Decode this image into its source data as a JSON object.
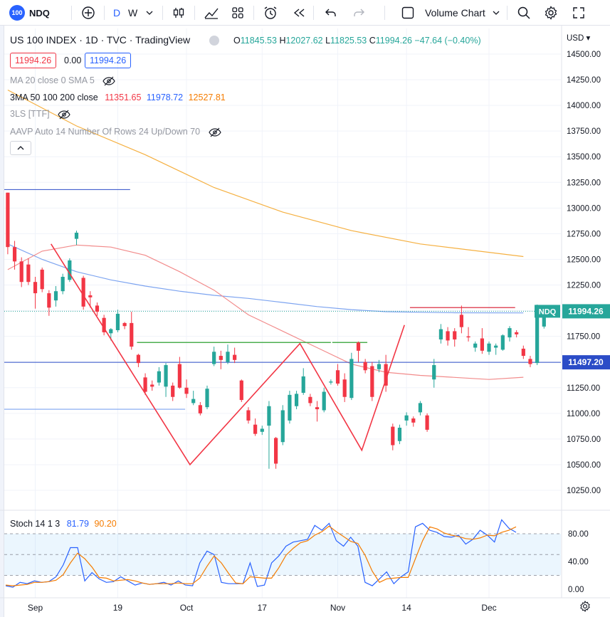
{
  "toolbar": {
    "symbol_badge": "100",
    "symbol": "NDQ",
    "intervals": [
      "D",
      "W"
    ],
    "chart_type_label": "Volume Chart"
  },
  "legend": {
    "title": "US 100 INDEX · 1D · TVC · TradingView",
    "ohlc": {
      "o_label": "O",
      "o": "11845.53",
      "h_label": "H",
      "h": "12027.62",
      "l_label": "L",
      "l": "11825.53",
      "c_label": "C",
      "c": "11994.26",
      "change": "−47.64 (−0.40%)"
    },
    "bid": "11994.26",
    "spread": "0.00",
    "ask": "11994.26",
    "indicators": [
      {
        "label": "MA 20 close 0 SMA 5",
        "values": []
      },
      {
        "label": "3MA 50 100 200 close",
        "values": [
          "11351.65",
          "11978.72",
          "12527.81"
        ]
      },
      {
        "label": "3LS [TTF]",
        "values": []
      },
      {
        "label": "AAVP Auto 14 Number Of Rows 24 Up/Down 70",
        "values": []
      }
    ],
    "stoch_label": "Stoch 14 1 3",
    "stoch_values": [
      "81.79",
      "90.20"
    ]
  },
  "price_axis": {
    "currency": "USD",
    "last_label": "NDQ",
    "last_value": "11994.26",
    "level_value": "11497.20"
  },
  "colors": {
    "up": "#26a69a",
    "down": "#f23645",
    "ma50": "#f28b8b",
    "ma100": "#7da4f0",
    "ma200": "#f5b041",
    "stoch_k": "#2962ff",
    "stoch_d": "#f57c00",
    "level": "#2b4cc7",
    "green_line": "#4caf50",
    "zigzag": "#f23645"
  },
  "chart_data": [
    {
      "type": "candlestick",
      "title": "US 100 INDEX · 1D · TVC · TradingView",
      "ylim": [
        10100,
        14650
      ],
      "yticks": [
        14500,
        14250,
        14000,
        13750,
        13500,
        13250,
        13000,
        12750,
        12500,
        12250,
        12000,
        11750,
        11500,
        11250,
        11000,
        10750,
        10500,
        10250
      ],
      "x_tick_labels": [
        {
          "label": "Sep",
          "index": 4
        },
        {
          "label": "19",
          "index": 16
        },
        {
          "label": "Oct",
          "index": 26
        },
        {
          "label": "17",
          "index": 37
        },
        {
          "label": "Nov",
          "index": 48
        },
        {
          "label": "14",
          "index": 58
        },
        {
          "label": "Dec",
          "index": 70
        }
      ],
      "x_range": [
        -0.3,
        77
      ],
      "candles": [
        {
          "o": 13150,
          "h": 13150,
          "l": 12550,
          "c": 12620
        },
        {
          "o": 12620,
          "h": 12680,
          "l": 12400,
          "c": 12480
        },
        {
          "o": 12480,
          "h": 12520,
          "l": 12230,
          "c": 12280
        },
        {
          "o": 12450,
          "h": 12510,
          "l": 12250,
          "c": 12280
        },
        {
          "o": 12280,
          "h": 12330,
          "l": 12020,
          "c": 12170
        },
        {
          "o": 12400,
          "h": 12420,
          "l": 12180,
          "c": 12210
        },
        {
          "o": 12170,
          "h": 12200,
          "l": 11950,
          "c": 12030
        },
        {
          "o": 12100,
          "h": 12240,
          "l": 12040,
          "c": 12190
        },
        {
          "o": 12190,
          "h": 12360,
          "l": 12160,
          "c": 12330
        },
        {
          "o": 12300,
          "h": 12510,
          "l": 12280,
          "c": 12490
        },
        {
          "o": 12700,
          "h": 12780,
          "l": 12640,
          "c": 12760
        },
        {
          "o": 12320,
          "h": 12340,
          "l": 12010,
          "c": 12040
        },
        {
          "o": 12150,
          "h": 12190,
          "l": 12030,
          "c": 12130
        },
        {
          "o": 12050,
          "h": 12080,
          "l": 11950,
          "c": 11990
        },
        {
          "o": 11930,
          "h": 11960,
          "l": 11760,
          "c": 11790
        },
        {
          "o": 11780,
          "h": 11830,
          "l": 11710,
          "c": 11820
        },
        {
          "o": 11810,
          "h": 12010,
          "l": 11790,
          "c": 11970
        },
        {
          "o": 11880,
          "h": 11890,
          "l": 11820,
          "c": 11850
        },
        {
          "o": 11880,
          "h": 11990,
          "l": 11620,
          "c": 11650
        },
        {
          "o": 11570,
          "h": 11580,
          "l": 11450,
          "c": 11490
        },
        {
          "o": 11350,
          "h": 11390,
          "l": 11180,
          "c": 11210
        },
        {
          "o": 11280,
          "h": 11320,
          "l": 11220,
          "c": 11260
        },
        {
          "o": 11300,
          "h": 11450,
          "l": 11270,
          "c": 11410
        },
        {
          "o": 11260,
          "h": 11490,
          "l": 11160,
          "c": 11470
        },
        {
          "o": 11270,
          "h": 11300,
          "l": 11120,
          "c": 11160
        },
        {
          "o": 11480,
          "h": 11550,
          "l": 11240,
          "c": 11250
        },
        {
          "o": 11250,
          "h": 11330,
          "l": 11150,
          "c": 11190
        },
        {
          "o": 11100,
          "h": 11220,
          "l": 11080,
          "c": 11140
        },
        {
          "o": 11080,
          "h": 11110,
          "l": 10980,
          "c": 11000
        },
        {
          "o": 11060,
          "h": 11270,
          "l": 11040,
          "c": 11240
        },
        {
          "o": 11480,
          "h": 11650,
          "l": 11460,
          "c": 11600
        },
        {
          "o": 11560,
          "h": 11610,
          "l": 11430,
          "c": 11520
        },
        {
          "o": 11500,
          "h": 11670,
          "l": 11480,
          "c": 11600
        },
        {
          "o": 11570,
          "h": 11640,
          "l": 11490,
          "c": 11520
        },
        {
          "o": 11320,
          "h": 11330,
          "l": 11110,
          "c": 11130
        },
        {
          "o": 11030,
          "h": 11060,
          "l": 10900,
          "c": 10930
        },
        {
          "o": 10890,
          "h": 10950,
          "l": 10780,
          "c": 10800
        },
        {
          "o": 10820,
          "h": 10880,
          "l": 10790,
          "c": 10850
        },
        {
          "o": 10880,
          "h": 11120,
          "l": 10460,
          "c": 11070
        },
        {
          "o": 10760,
          "h": 10770,
          "l": 10460,
          "c": 10510
        },
        {
          "o": 10720,
          "h": 11080,
          "l": 10690,
          "c": 11030
        },
        {
          "o": 10930,
          "h": 11220,
          "l": 10900,
          "c": 11180
        },
        {
          "o": 11070,
          "h": 11220,
          "l": 11040,
          "c": 11190
        },
        {
          "o": 11200,
          "h": 11440,
          "l": 11180,
          "c": 11360
        },
        {
          "o": 11160,
          "h": 11190,
          "l": 11070,
          "c": 11100
        },
        {
          "o": 11060,
          "h": 11120,
          "l": 10920,
          "c": 11040
        },
        {
          "o": 11030,
          "h": 11250,
          "l": 11010,
          "c": 11210
        },
        {
          "o": 11300,
          "h": 11330,
          "l": 11280,
          "c": 11310
        },
        {
          "o": 11420,
          "h": 11480,
          "l": 11270,
          "c": 11290
        },
        {
          "o": 11330,
          "h": 11390,
          "l": 11110,
          "c": 11160
        },
        {
          "o": 11150,
          "h": 11590,
          "l": 11130,
          "c": 11530
        },
        {
          "o": 11690,
          "h": 11700,
          "l": 11500,
          "c": 11610
        },
        {
          "o": 11500,
          "h": 11530,
          "l": 11390,
          "c": 11420
        },
        {
          "o": 11460,
          "h": 11500,
          "l": 11120,
          "c": 11160
        },
        {
          "o": 11430,
          "h": 11520,
          "l": 11400,
          "c": 11480
        },
        {
          "o": 11480,
          "h": 11570,
          "l": 11210,
          "c": 11270
        },
        {
          "o": 10870,
          "h": 10900,
          "l": 10640,
          "c": 10690
        },
        {
          "o": 10730,
          "h": 10890,
          "l": 10700,
          "c": 10860
        },
        {
          "o": 10930,
          "h": 11010,
          "l": 10880,
          "c": 10980
        },
        {
          "o": 10950,
          "h": 10970,
          "l": 10870,
          "c": 10910
        },
        {
          "o": 11010,
          "h": 11120,
          "l": 10980,
          "c": 11100
        },
        {
          "o": 10980,
          "h": 11000,
          "l": 10820,
          "c": 10840
        },
        {
          "o": 11330,
          "h": 11530,
          "l": 11250,
          "c": 11470
        },
        {
          "o": 11720,
          "h": 11870,
          "l": 11680,
          "c": 11820
        },
        {
          "o": 11800,
          "h": 11840,
          "l": 11660,
          "c": 11710
        },
        {
          "o": 11800,
          "h": 11830,
          "l": 11650,
          "c": 11720
        },
        {
          "o": 11960,
          "h": 12050,
          "l": 11780,
          "c": 11840
        },
        {
          "o": 11750,
          "h": 11840,
          "l": 11700,
          "c": 11740
        },
        {
          "o": 11640,
          "h": 11700,
          "l": 11600,
          "c": 11680
        },
        {
          "o": 11730,
          "h": 11830,
          "l": 11580,
          "c": 11610
        },
        {
          "o": 11600,
          "h": 11700,
          "l": 11570,
          "c": 11680
        },
        {
          "o": 11640,
          "h": 11680,
          "l": 11570,
          "c": 11660
        },
        {
          "o": 11620,
          "h": 11770,
          "l": 11610,
          "c": 11760
        },
        {
          "o": 11740,
          "h": 11850,
          "l": 11700,
          "c": 11830
        },
        {
          "o": 11790,
          "h": 11810,
          "l": 11740,
          "c": 11770
        },
        {
          "o": 11630,
          "h": 11660,
          "l": 11530,
          "c": 11560
        },
        {
          "o": 11530,
          "h": 11560,
          "l": 11450,
          "c": 11480
        },
        {
          "o": 11490,
          "h": 12060,
          "l": 11470,
          "c": 12030
        },
        {
          "o": 11845.53,
          "h": 12027.62,
          "l": 11825.53,
          "c": 11994.26
        }
      ],
      "horizontal_levels": [
        11994.26,
        11497.2,
        13180,
        11040
      ],
      "green_level": 11690,
      "ma200": [
        [
          0,
          14150
        ],
        [
          10,
          13800
        ],
        [
          20,
          13520
        ],
        [
          30,
          13200
        ],
        [
          40,
          12960
        ],
        [
          50,
          12780
        ],
        [
          60,
          12650
        ],
        [
          75,
          12527.81
        ]
      ],
      "ma100": [
        [
          0,
          12650
        ],
        [
          5,
          12500
        ],
        [
          10,
          12380
        ],
        [
          15,
          12300
        ],
        [
          20,
          12240
        ],
        [
          25,
          12190
        ],
        [
          30,
          12150
        ],
        [
          35,
          12120
        ],
        [
          40,
          12080
        ],
        [
          45,
          12040
        ],
        [
          50,
          12010
        ],
        [
          55,
          11990
        ],
        [
          60,
          11985
        ],
        [
          65,
          11980
        ],
        [
          75,
          11978.72
        ]
      ],
      "ma50": [
        [
          0,
          12400
        ],
        [
          5,
          12580
        ],
        [
          10,
          12640
        ],
        [
          15,
          12620
        ],
        [
          20,
          12540
        ],
        [
          25,
          12380
        ],
        [
          30,
          12200
        ],
        [
          35,
          11960
        ],
        [
          40,
          11800
        ],
        [
          45,
          11640
        ],
        [
          50,
          11480
        ],
        [
          55,
          11400
        ],
        [
          60,
          11370
        ],
        [
          65,
          11350
        ],
        [
          70,
          11330
        ],
        [
          75,
          11351.65
        ]
      ],
      "zigzag": [
        [
          6.3,
          12650
        ],
        [
          26.5,
          10500
        ],
        [
          42.5,
          11680
        ],
        [
          51.5,
          10640
        ],
        [
          57.7,
          11860
        ]
      ]
    },
    {
      "type": "line",
      "title": "Stoch 14 1 3",
      "ylim": [
        -5,
        100
      ],
      "yticks": [
        80,
        40,
        0
      ],
      "band": [
        20,
        80
      ],
      "series": [
        {
          "name": "%K",
          "values": [
            5,
            3,
            10,
            8,
            12,
            10,
            11,
            18,
            35,
            60,
            60,
            12,
            24,
            15,
            10,
            11,
            18,
            12,
            6,
            9,
            7,
            8,
            10,
            6,
            12,
            6,
            5,
            38,
            55,
            50,
            10,
            8,
            8,
            8,
            38,
            4,
            6,
            38,
            48,
            62,
            68,
            70,
            72,
            92,
            85,
            95,
            70,
            62,
            75,
            62,
            10,
            5,
            15,
            25,
            8,
            18,
            25,
            90,
            95,
            85,
            82,
            76,
            75,
            78,
            65,
            72,
            85,
            78,
            68,
            100,
            88,
            82
          ]
        },
        {
          "name": "%D",
          "values": [
            6,
            5,
            6,
            7,
            10,
            10,
            11,
            13,
            21,
            38,
            52,
            44,
            32,
            17,
            16,
            12,
            13,
            14,
            12,
            9,
            7,
            8,
            8,
            8,
            9,
            8,
            8,
            16,
            33,
            48,
            38,
            23,
            9,
            8,
            18,
            17,
            16,
            16,
            31,
            49,
            59,
            67,
            70,
            78,
            83,
            91,
            83,
            76,
            69,
            66,
            49,
            26,
            10,
            15,
            16,
            17,
            17,
            44,
            70,
            90,
            87,
            81,
            78,
            76,
            73,
            72,
            74,
            78,
            77,
            82,
            85,
            90
          ]
        }
      ]
    }
  ]
}
